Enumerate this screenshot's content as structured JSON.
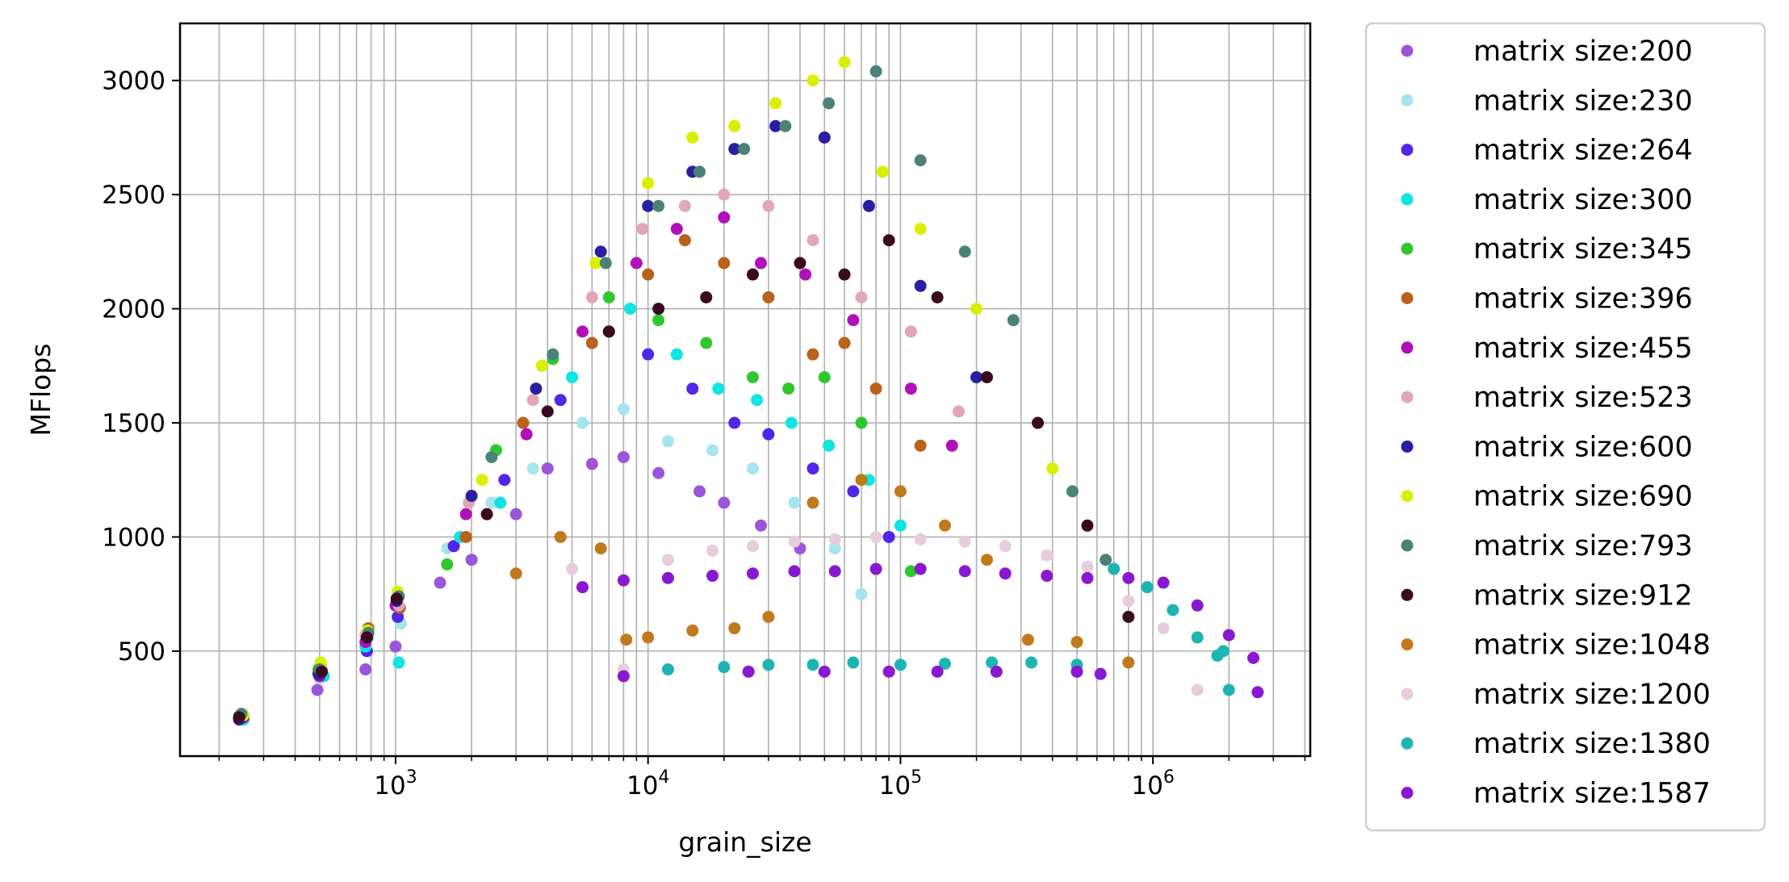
{
  "chart_data": {
    "type": "scatter",
    "xscale": "log",
    "xlabel": "grain_size",
    "ylabel": "MFlops",
    "xlim": [
      140,
      4200000
    ],
    "ylim": [
      40,
      3250
    ],
    "x_major_ticks": [
      1000,
      10000,
      100000,
      1000000
    ],
    "x_tick_labels": [
      {
        "base": "10",
        "exp": "3"
      },
      {
        "base": "10",
        "exp": "4"
      },
      {
        "base": "10",
        "exp": "5"
      },
      {
        "base": "10",
        "exp": "6"
      }
    ],
    "y_ticks": [
      500,
      1000,
      1500,
      2000,
      2500,
      3000
    ],
    "y_tick_labels": [
      "500",
      "1000",
      "1500",
      "2000",
      "2500",
      "3000"
    ],
    "grid": true,
    "legend_position": "outside-right",
    "series": [
      {
        "name": "matrix size:200",
        "color": "#9a55d8",
        "points": [
          [
            245,
            225
          ],
          [
            490,
            330
          ],
          [
            760,
            420
          ],
          [
            1000,
            520
          ],
          [
            1500,
            800
          ],
          [
            2000,
            900
          ],
          [
            3000,
            1100
          ],
          [
            4000,
            1300
          ],
          [
            6000,
            1320
          ],
          [
            8000,
            1350
          ],
          [
            11000,
            1280
          ],
          [
            16000,
            1200
          ],
          [
            20000,
            1150
          ],
          [
            28000,
            1050
          ],
          [
            40000,
            950
          ]
        ]
      },
      {
        "name": "matrix size:230",
        "color": "#a6e4ee",
        "points": [
          [
            245,
            215
          ],
          [
            500,
            380
          ],
          [
            780,
            560
          ],
          [
            1050,
            620
          ],
          [
            1600,
            950
          ],
          [
            2400,
            1150
          ],
          [
            3500,
            1300
          ],
          [
            5500,
            1500
          ],
          [
            8000,
            1560
          ],
          [
            12000,
            1420
          ],
          [
            18000,
            1380
          ],
          [
            26000,
            1300
          ],
          [
            38000,
            1150
          ],
          [
            55000,
            950
          ],
          [
            70000,
            750
          ]
        ]
      },
      {
        "name": "matrix size:264",
        "color": "#5026e8",
        "points": [
          [
            240,
            205
          ],
          [
            510,
            400
          ],
          [
            770,
            500
          ],
          [
            1020,
            650
          ],
          [
            1700,
            960
          ],
          [
            2700,
            1250
          ],
          [
            4500,
            1600
          ],
          [
            7000,
            1900
          ],
          [
            10000,
            1800
          ],
          [
            15000,
            1650
          ],
          [
            22000,
            1500
          ],
          [
            30000,
            1450
          ],
          [
            45000,
            1300
          ],
          [
            65000,
            1200
          ],
          [
            90000,
            1000
          ]
        ]
      },
      {
        "name": "matrix size:300",
        "color": "#10e4e4",
        "points": [
          [
            250,
            200
          ],
          [
            520,
            390
          ],
          [
            760,
            520
          ],
          [
            1030,
            450
          ],
          [
            1800,
            1000
          ],
          [
            2600,
            1150
          ],
          [
            5000,
            1700
          ],
          [
            8500,
            2000
          ],
          [
            13000,
            1800
          ],
          [
            19000,
            1650
          ],
          [
            27000,
            1600
          ],
          [
            37000,
            1500
          ],
          [
            52000,
            1400
          ],
          [
            75000,
            1250
          ],
          [
            100000,
            1050
          ]
        ]
      },
      {
        "name": "matrix size:345",
        "color": "#2ec82e",
        "points": [
          [
            240,
            215
          ],
          [
            495,
            420
          ],
          [
            770,
            560
          ],
          [
            1010,
            700
          ],
          [
            1600,
            880
          ],
          [
            2500,
            1380
          ],
          [
            4200,
            1780
          ],
          [
            7000,
            2050
          ],
          [
            11000,
            1950
          ],
          [
            17000,
            1850
          ],
          [
            26000,
            1700
          ],
          [
            36000,
            1650
          ],
          [
            50000,
            1700
          ],
          [
            70000,
            1500
          ],
          [
            110000,
            850
          ]
        ]
      },
      {
        "name": "matrix size:396",
        "color": "#b8621a",
        "points": [
          [
            245,
            220
          ],
          [
            505,
            440
          ],
          [
            780,
            600
          ],
          [
            1040,
            690
          ],
          [
            1900,
            1000
          ],
          [
            3200,
            1500
          ],
          [
            6000,
            1850
          ],
          [
            10000,
            2150
          ],
          [
            14000,
            2300
          ],
          [
            20000,
            2200
          ],
          [
            30000,
            2050
          ],
          [
            45000,
            1800
          ],
          [
            60000,
            1850
          ],
          [
            80000,
            1650
          ],
          [
            120000,
            1400
          ]
        ]
      },
      {
        "name": "matrix size:455",
        "color": "#b010b8",
        "points": [
          [
            250,
            210
          ],
          [
            500,
            390
          ],
          [
            760,
            540
          ],
          [
            1000,
            700
          ],
          [
            1900,
            1100
          ],
          [
            3300,
            1450
          ],
          [
            5500,
            1900
          ],
          [
            9000,
            2200
          ],
          [
            13000,
            2350
          ],
          [
            20000,
            2400
          ],
          [
            28000,
            2200
          ],
          [
            42000,
            2150
          ],
          [
            65000,
            1950
          ],
          [
            110000,
            1650
          ],
          [
            160000,
            1400
          ]
        ]
      },
      {
        "name": "matrix size:523",
        "color": "#e2a6b4",
        "points": [
          [
            245,
            225
          ],
          [
            510,
            420
          ],
          [
            760,
            570
          ],
          [
            1030,
            700
          ],
          [
            1950,
            1150
          ],
          [
            3500,
            1600
          ],
          [
            6000,
            2050
          ],
          [
            9500,
            2350
          ],
          [
            14000,
            2450
          ],
          [
            20000,
            2500
          ],
          [
            30000,
            2450
          ],
          [
            45000,
            2300
          ],
          [
            70000,
            2050
          ],
          [
            110000,
            1900
          ],
          [
            170000,
            1550
          ]
        ]
      },
      {
        "name": "matrix size:600",
        "color": "#2820a0",
        "points": [
          [
            240,
            200
          ],
          [
            495,
            400
          ],
          [
            770,
            560
          ],
          [
            1010,
            720
          ],
          [
            2000,
            1180
          ],
          [
            3600,
            1650
          ],
          [
            6500,
            2250
          ],
          [
            10000,
            2450
          ],
          [
            15000,
            2600
          ],
          [
            22000,
            2700
          ],
          [
            32000,
            2800
          ],
          [
            50000,
            2750
          ],
          [
            75000,
            2450
          ],
          [
            120000,
            2100
          ],
          [
            200000,
            1700
          ]
        ]
      },
      {
        "name": "matrix size:690",
        "color": "#d8f000",
        "points": [
          [
            250,
            220
          ],
          [
            505,
            450
          ],
          [
            775,
            590
          ],
          [
            1020,
            760
          ],
          [
            2200,
            1250
          ],
          [
            3800,
            1750
          ],
          [
            6200,
            2200
          ],
          [
            10000,
            2550
          ],
          [
            15000,
            2750
          ],
          [
            22000,
            2800
          ],
          [
            32000,
            2900
          ],
          [
            45000,
            3000
          ],
          [
            60000,
            3080
          ],
          [
            85000,
            2600
          ],
          [
            120000,
            2350
          ],
          [
            200000,
            2000
          ],
          [
            400000,
            1300
          ]
        ]
      },
      {
        "name": "matrix size:793",
        "color": "#4a8278",
        "points": [
          [
            245,
            225
          ],
          [
            500,
            420
          ],
          [
            780,
            580
          ],
          [
            1030,
            740
          ],
          [
            2400,
            1350
          ],
          [
            4200,
            1800
          ],
          [
            6800,
            2200
          ],
          [
            11000,
            2450
          ],
          [
            16000,
            2600
          ],
          [
            24000,
            2700
          ],
          [
            35000,
            2800
          ],
          [
            52000,
            2900
          ],
          [
            80000,
            3040
          ],
          [
            120000,
            2650
          ],
          [
            180000,
            2250
          ],
          [
            280000,
            1950
          ],
          [
            480000,
            1200
          ],
          [
            650000,
            900
          ]
        ]
      },
      {
        "name": "matrix size:912",
        "color": "#3a0a20",
        "points": [
          [
            240,
            210
          ],
          [
            510,
            410
          ],
          [
            770,
            560
          ],
          [
            1010,
            730
          ],
          [
            2300,
            1100
          ],
          [
            4000,
            1550
          ],
          [
            7000,
            1900
          ],
          [
            11000,
            2000
          ],
          [
            17000,
            2050
          ],
          [
            26000,
            2150
          ],
          [
            40000,
            2200
          ],
          [
            60000,
            2150
          ],
          [
            90000,
            2300
          ],
          [
            140000,
            2050
          ],
          [
            220000,
            1700
          ],
          [
            350000,
            1500
          ],
          [
            550000,
            1050
          ],
          [
            800000,
            650
          ]
        ]
      },
      {
        "name": "matrix size:1048",
        "color": "#c07a1c",
        "points": [
          [
            3000,
            840
          ],
          [
            4500,
            1000
          ],
          [
            6500,
            950
          ],
          [
            8200,
            550
          ],
          [
            10000,
            560
          ],
          [
            15000,
            590
          ],
          [
            22000,
            600
          ],
          [
            30000,
            650
          ],
          [
            45000,
            1150
          ],
          [
            70000,
            1250
          ],
          [
            100000,
            1200
          ],
          [
            150000,
            1050
          ],
          [
            220000,
            900
          ],
          [
            320000,
            550
          ],
          [
            500000,
            540
          ],
          [
            800000,
            450
          ]
        ]
      },
      {
        "name": "matrix size:1200",
        "color": "#e6ccdc",
        "points": [
          [
            5000,
            860
          ],
          [
            8000,
            420
          ],
          [
            12000,
            900
          ],
          [
            18000,
            940
          ],
          [
            26000,
            960
          ],
          [
            38000,
            980
          ],
          [
            55000,
            990
          ],
          [
            80000,
            1000
          ],
          [
            120000,
            990
          ],
          [
            180000,
            980
          ],
          [
            260000,
            960
          ],
          [
            380000,
            920
          ],
          [
            550000,
            870
          ],
          [
            800000,
            720
          ],
          [
            1100000,
            600
          ],
          [
            1500000,
            330
          ]
        ]
      },
      {
        "name": "matrix size:1380",
        "color": "#1eb4b4",
        "points": [
          [
            12000,
            420
          ],
          [
            20000,
            430
          ],
          [
            30000,
            440
          ],
          [
            45000,
            440
          ],
          [
            65000,
            450
          ],
          [
            100000,
            440
          ],
          [
            150000,
            445
          ],
          [
            230000,
            450
          ],
          [
            330000,
            450
          ],
          [
            500000,
            440
          ],
          [
            700000,
            860
          ],
          [
            950000,
            780
          ],
          [
            1200000,
            680
          ],
          [
            1500000,
            560
          ],
          [
            1800000,
            480
          ],
          [
            2000000,
            330
          ],
          [
            1900000,
            500
          ]
        ]
      },
      {
        "name": "matrix size:1587",
        "color": "#8a18d0",
        "points": [
          [
            5500,
            780
          ],
          [
            8000,
            810
          ],
          [
            12000,
            820
          ],
          [
            18000,
            830
          ],
          [
            26000,
            840
          ],
          [
            38000,
            850
          ],
          [
            55000,
            850
          ],
          [
            80000,
            860
          ],
          [
            120000,
            860
          ],
          [
            180000,
            850
          ],
          [
            260000,
            840
          ],
          [
            380000,
            830
          ],
          [
            550000,
            820
          ],
          [
            800000,
            820
          ],
          [
            1100000,
            800
          ],
          [
            1500000,
            700
          ],
          [
            2000000,
            570
          ],
          [
            2500000,
            470
          ],
          [
            2600000,
            320
          ],
          [
            8000,
            390
          ],
          [
            25000,
            410
          ],
          [
            50000,
            410
          ],
          [
            90000,
            410
          ],
          [
            140000,
            410
          ],
          [
            240000,
            410
          ],
          [
            500000,
            410
          ],
          [
            620000,
            400
          ]
        ]
      }
    ]
  }
}
